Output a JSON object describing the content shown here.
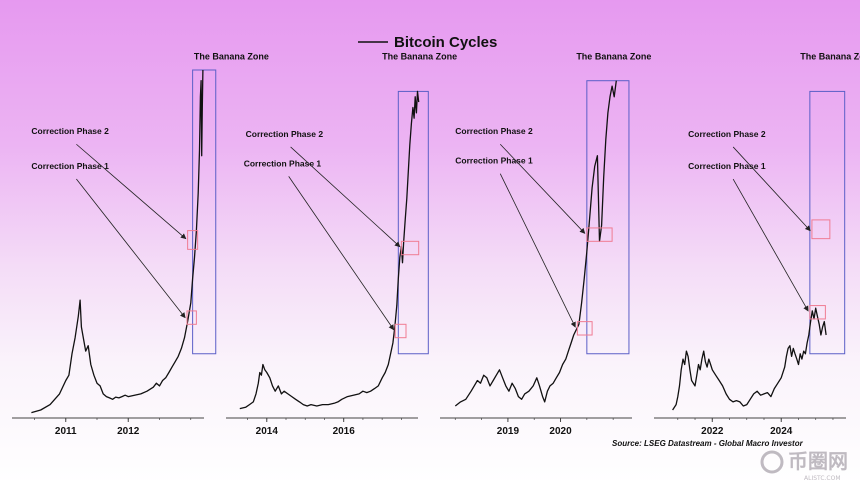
{
  "chart_data": {
    "type": "line",
    "title": "Bitcoin Cycles",
    "legend": {
      "label": "Bitcoin Cycles",
      "position": "top-center"
    },
    "source": "Source: LSEG Datastream - Global Macro Investor",
    "watermark": {
      "text": "币圈网",
      "sub": "ALISTC.COM"
    },
    "colors": {
      "zone_box": "#5b5fc7",
      "phase_box": "#f07c93",
      "line": "#111111",
      "axis": "#444444"
    },
    "zone_label": "The Banana Zone",
    "phase1_label": "Correction Phase 1",
    "phase2_label": "Correction Phase 2",
    "panels": [
      {
        "x_ticks": [
          "2011",
          "2012"
        ],
        "tick_years": [
          2011,
          2012
        ],
        "x_range": [
          2010.3,
          2013.5
        ],
        "series": [
          [
            2010.45,
            0.02
          ],
          [
            2010.6,
            0.03
          ],
          [
            2010.75,
            0.05
          ],
          [
            2010.9,
            0.09
          ],
          [
            2011.0,
            0.14
          ],
          [
            2011.05,
            0.16
          ],
          [
            2011.1,
            0.24
          ],
          [
            2011.15,
            0.3
          ],
          [
            2011.2,
            0.38
          ],
          [
            2011.23,
            0.44
          ],
          [
            2011.25,
            0.34
          ],
          [
            2011.28,
            0.3
          ],
          [
            2011.32,
            0.25
          ],
          [
            2011.36,
            0.27
          ],
          [
            2011.4,
            0.2
          ],
          [
            2011.45,
            0.16
          ],
          [
            2011.5,
            0.13
          ],
          [
            2011.55,
            0.12
          ],
          [
            2011.6,
            0.09
          ],
          [
            2011.65,
            0.08
          ],
          [
            2011.7,
            0.075
          ],
          [
            2011.75,
            0.07
          ],
          [
            2011.8,
            0.078
          ],
          [
            2011.85,
            0.075
          ],
          [
            2011.9,
            0.08
          ],
          [
            2011.95,
            0.085
          ],
          [
            2012.0,
            0.08
          ],
          [
            2012.1,
            0.085
          ],
          [
            2012.2,
            0.09
          ],
          [
            2012.3,
            0.1
          ],
          [
            2012.4,
            0.115
          ],
          [
            2012.45,
            0.13
          ],
          [
            2012.5,
            0.12
          ],
          [
            2012.55,
            0.14
          ],
          [
            2012.6,
            0.15
          ],
          [
            2012.65,
            0.17
          ],
          [
            2012.7,
            0.19
          ],
          [
            2012.75,
            0.21
          ],
          [
            2012.8,
            0.23
          ],
          [
            2012.85,
            0.26
          ],
          [
            2012.9,
            0.3
          ],
          [
            2012.95,
            0.36
          ],
          [
            2013.0,
            0.43
          ],
          [
            2013.03,
            0.52
          ],
          [
            2013.06,
            0.6
          ],
          [
            2013.09,
            0.7
          ],
          [
            2013.12,
            0.84
          ],
          [
            2013.14,
            1.0
          ],
          [
            2013.155,
            1.2
          ],
          [
            2013.165,
            1.26
          ],
          [
            2013.175,
            0.98
          ],
          [
            2013.185,
            1.16
          ],
          [
            2013.195,
            1.3
          ]
        ],
        "zone": {
          "x": [
            2013.03,
            2013.4
          ],
          "y": [
            0.24,
            1.3
          ],
          "label_x": 2013.05,
          "label_y": 1.34
        },
        "phase1": {
          "box_x": [
            2012.94,
            2013.09
          ],
          "box_y": [
            0.35,
            0.4
          ],
          "label_x": 2010.45,
          "label_y": 0.93,
          "arrow_to": [
            2012.91,
            0.375
          ]
        },
        "phase2": {
          "box_x": [
            2012.95,
            2013.11
          ],
          "box_y": [
            0.63,
            0.7
          ],
          "label_x": 2010.45,
          "label_y": 1.06,
          "arrow_to": [
            2012.92,
            0.67
          ]
        }
      },
      {
        "x_ticks": [
          "2014",
          "2016"
        ],
        "tick_years": [
          2014,
          2016
        ],
        "x_range": [
          2013.2,
          2018.4
        ],
        "series": [
          [
            2013.3,
            0.035
          ],
          [
            2013.45,
            0.04
          ],
          [
            2013.55,
            0.05
          ],
          [
            2013.65,
            0.06
          ],
          [
            2013.72,
            0.09
          ],
          [
            2013.78,
            0.13
          ],
          [
            2013.82,
            0.17
          ],
          [
            2013.86,
            0.16
          ],
          [
            2013.9,
            0.2
          ],
          [
            2013.95,
            0.18
          ],
          [
            2014.0,
            0.17
          ],
          [
            2014.08,
            0.15
          ],
          [
            2014.15,
            0.12
          ],
          [
            2014.22,
            0.1
          ],
          [
            2014.3,
            0.12
          ],
          [
            2014.38,
            0.09
          ],
          [
            2014.45,
            0.1
          ],
          [
            2014.55,
            0.09
          ],
          [
            2014.65,
            0.08
          ],
          [
            2014.75,
            0.07
          ],
          [
            2014.85,
            0.06
          ],
          [
            2014.95,
            0.05
          ],
          [
            2015.05,
            0.045
          ],
          [
            2015.15,
            0.05
          ],
          [
            2015.3,
            0.045
          ],
          [
            2015.45,
            0.05
          ],
          [
            2015.6,
            0.05
          ],
          [
            2015.75,
            0.055
          ],
          [
            2015.85,
            0.06
          ],
          [
            2015.95,
            0.07
          ],
          [
            2016.1,
            0.08
          ],
          [
            2016.25,
            0.085
          ],
          [
            2016.4,
            0.09
          ],
          [
            2016.5,
            0.1
          ],
          [
            2016.6,
            0.095
          ],
          [
            2016.7,
            0.1
          ],
          [
            2016.8,
            0.11
          ],
          [
            2016.9,
            0.12
          ],
          [
            2017.0,
            0.15
          ],
          [
            2017.08,
            0.17
          ],
          [
            2017.16,
            0.2
          ],
          [
            2017.22,
            0.24
          ],
          [
            2017.28,
            0.28
          ],
          [
            2017.33,
            0.34
          ],
          [
            2017.38,
            0.42
          ],
          [
            2017.42,
            0.52
          ],
          [
            2017.46,
            0.6
          ],
          [
            2017.5,
            0.64
          ],
          [
            2017.53,
            0.58
          ],
          [
            2017.56,
            0.66
          ],
          [
            2017.6,
            0.74
          ],
          [
            2017.64,
            0.82
          ],
          [
            2017.68,
            0.92
          ],
          [
            2017.72,
            1.02
          ],
          [
            2017.76,
            1.1
          ],
          [
            2017.8,
            1.16
          ],
          [
            2017.83,
            1.12
          ],
          [
            2017.86,
            1.2
          ],
          [
            2017.89,
            1.14
          ],
          [
            2017.92,
            1.22
          ],
          [
            2017.95,
            1.18
          ]
        ],
        "zone": {
          "x": [
            2017.42,
            2018.2
          ],
          "y": [
            0.24,
            1.22
          ],
          "label_x": 2017.0,
          "label_y": 1.34
        },
        "phase1": {
          "box_x": [
            2017.34,
            2017.62
          ],
          "box_y": [
            0.3,
            0.35
          ],
          "label_x": 2013.4,
          "label_y": 0.94,
          "arrow_to": [
            2017.3,
            0.33
          ]
        },
        "phase2": {
          "box_x": [
            2017.5,
            2017.95
          ],
          "box_y": [
            0.61,
            0.66
          ],
          "label_x": 2013.45,
          "label_y": 1.05,
          "arrow_to": [
            2017.46,
            0.64
          ]
        }
      },
      {
        "x_ticks": [
          "2019",
          "2020"
        ],
        "tick_years": [
          2019,
          2020
        ],
        "x_range": [
          2017.9,
          2021.7
        ],
        "series": [
          [
            2018.0,
            0.045
          ],
          [
            2018.1,
            0.06
          ],
          [
            2018.2,
            0.07
          ],
          [
            2018.3,
            0.1
          ],
          [
            2018.36,
            0.12
          ],
          [
            2018.42,
            0.14
          ],
          [
            2018.48,
            0.13
          ],
          [
            2018.54,
            0.16
          ],
          [
            2018.6,
            0.15
          ],
          [
            2018.66,
            0.12
          ],
          [
            2018.72,
            0.14
          ],
          [
            2018.78,
            0.16
          ],
          [
            2018.84,
            0.18
          ],
          [
            2018.9,
            0.15
          ],
          [
            2018.96,
            0.12
          ],
          [
            2019.02,
            0.1
          ],
          [
            2019.08,
            0.13
          ],
          [
            2019.14,
            0.11
          ],
          [
            2019.2,
            0.08
          ],
          [
            2019.26,
            0.07
          ],
          [
            2019.32,
            0.09
          ],
          [
            2019.4,
            0.1
          ],
          [
            2019.48,
            0.12
          ],
          [
            2019.55,
            0.15
          ],
          [
            2019.6,
            0.12
          ],
          [
            2019.66,
            0.08
          ],
          [
            2019.7,
            0.06
          ],
          [
            2019.75,
            0.1
          ],
          [
            2019.8,
            0.12
          ],
          [
            2019.86,
            0.13
          ],
          [
            2019.92,
            0.15
          ],
          [
            2019.98,
            0.17
          ],
          [
            2020.04,
            0.2
          ],
          [
            2020.1,
            0.22
          ],
          [
            2020.15,
            0.25
          ],
          [
            2020.2,
            0.28
          ],
          [
            2020.25,
            0.31
          ],
          [
            2020.3,
            0.33
          ],
          [
            2020.35,
            0.35
          ],
          [
            2020.4,
            0.43
          ],
          [
            2020.45,
            0.52
          ],
          [
            2020.5,
            0.62
          ],
          [
            2020.55,
            0.74
          ],
          [
            2020.6,
            0.86
          ],
          [
            2020.65,
            0.94
          ],
          [
            2020.7,
            0.98
          ],
          [
            2020.74,
            0.66
          ],
          [
            2020.78,
            0.72
          ],
          [
            2020.82,
            0.9
          ],
          [
            2020.86,
            1.04
          ],
          [
            2020.9,
            1.14
          ],
          [
            2020.94,
            1.2
          ],
          [
            2020.98,
            1.24
          ],
          [
            2021.02,
            1.2
          ],
          [
            2021.06,
            1.26
          ]
        ],
        "zone": {
          "x": [
            2020.5,
            2021.3
          ],
          "y": [
            0.24,
            1.26
          ],
          "label_x": 2020.3,
          "label_y": 1.34
        },
        "phase1": {
          "box_x": [
            2020.32,
            2020.6
          ],
          "box_y": [
            0.31,
            0.36
          ],
          "label_x": 2018.0,
          "label_y": 0.95,
          "arrow_to": [
            2020.28,
            0.34
          ]
        },
        "phase2": {
          "box_x": [
            2020.5,
            2020.98
          ],
          "box_y": [
            0.66,
            0.71
          ],
          "label_x": 2018.0,
          "label_y": 1.06,
          "arrow_to": [
            2020.46,
            0.69
          ]
        }
      },
      {
        "x_ticks": [
          "2022",
          "2024"
        ],
        "tick_years": [
          2022,
          2024
        ],
        "x_range": [
          2020.6,
          2026.4
        ],
        "series": [
          [
            2020.85,
            0.03
          ],
          [
            2020.95,
            0.05
          ],
          [
            2021.0,
            0.08
          ],
          [
            2021.05,
            0.12
          ],
          [
            2021.1,
            0.18
          ],
          [
            2021.15,
            0.22
          ],
          [
            2021.2,
            0.2
          ],
          [
            2021.25,
            0.25
          ],
          [
            2021.3,
            0.23
          ],
          [
            2021.35,
            0.18
          ],
          [
            2021.4,
            0.14
          ],
          [
            2021.45,
            0.13
          ],
          [
            2021.5,
            0.12
          ],
          [
            2021.55,
            0.16
          ],
          [
            2021.6,
            0.2
          ],
          [
            2021.65,
            0.18
          ],
          [
            2021.7,
            0.22
          ],
          [
            2021.75,
            0.25
          ],
          [
            2021.8,
            0.21
          ],
          [
            2021.85,
            0.19
          ],
          [
            2021.9,
            0.22
          ],
          [
            2021.95,
            0.2
          ],
          [
            2022.0,
            0.18
          ],
          [
            2022.1,
            0.16
          ],
          [
            2022.2,
            0.14
          ],
          [
            2022.3,
            0.12
          ],
          [
            2022.4,
            0.09
          ],
          [
            2022.5,
            0.07
          ],
          [
            2022.6,
            0.06
          ],
          [
            2022.7,
            0.065
          ],
          [
            2022.8,
            0.06
          ],
          [
            2022.9,
            0.045
          ],
          [
            2023.0,
            0.05
          ],
          [
            2023.1,
            0.07
          ],
          [
            2023.2,
            0.09
          ],
          [
            2023.3,
            0.1
          ],
          [
            2023.4,
            0.085
          ],
          [
            2023.5,
            0.09
          ],
          [
            2023.6,
            0.095
          ],
          [
            2023.7,
            0.08
          ],
          [
            2023.8,
            0.11
          ],
          [
            2023.9,
            0.13
          ],
          [
            2024.0,
            0.15
          ],
          [
            2024.1,
            0.19
          ],
          [
            2024.15,
            0.23
          ],
          [
            2024.2,
            0.26
          ],
          [
            2024.25,
            0.27
          ],
          [
            2024.3,
            0.23
          ],
          [
            2024.35,
            0.26
          ],
          [
            2024.4,
            0.24
          ],
          [
            2024.45,
            0.22
          ],
          [
            2024.5,
            0.2
          ],
          [
            2024.55,
            0.24
          ],
          [
            2024.6,
            0.22
          ],
          [
            2024.65,
            0.25
          ],
          [
            2024.7,
            0.24
          ],
          [
            2024.75,
            0.28
          ],
          [
            2024.8,
            0.31
          ],
          [
            2024.85,
            0.36
          ],
          [
            2024.9,
            0.4
          ],
          [
            2024.95,
            0.37
          ],
          [
            2025.0,
            0.41
          ],
          [
            2025.05,
            0.38
          ],
          [
            2025.1,
            0.35
          ],
          [
            2025.15,
            0.31
          ],
          [
            2025.2,
            0.34
          ],
          [
            2025.25,
            0.36
          ],
          [
            2025.3,
            0.31
          ]
        ],
        "zone": {
          "x": [
            2024.83,
            2025.84
          ],
          "y": [
            0.24,
            1.22
          ],
          "label_x": 2024.55,
          "label_y": 1.34
        },
        "phase1": {
          "box_x": [
            2024.83,
            2025.28
          ],
          "box_y": [
            0.37,
            0.42
          ],
          "label_x": 2021.3,
          "label_y": 0.93,
          "arrow_to": [
            2024.78,
            0.4
          ]
        },
        "phase2": {
          "box_x": [
            2024.89,
            2025.41
          ],
          "box_y": [
            0.67,
            0.74
          ],
          "label_x": 2021.3,
          "label_y": 1.05,
          "arrow_to": [
            2024.84,
            0.7
          ]
        }
      }
    ],
    "y_scale": "relative (each panel normalised to its own peak)",
    "grid": false
  }
}
